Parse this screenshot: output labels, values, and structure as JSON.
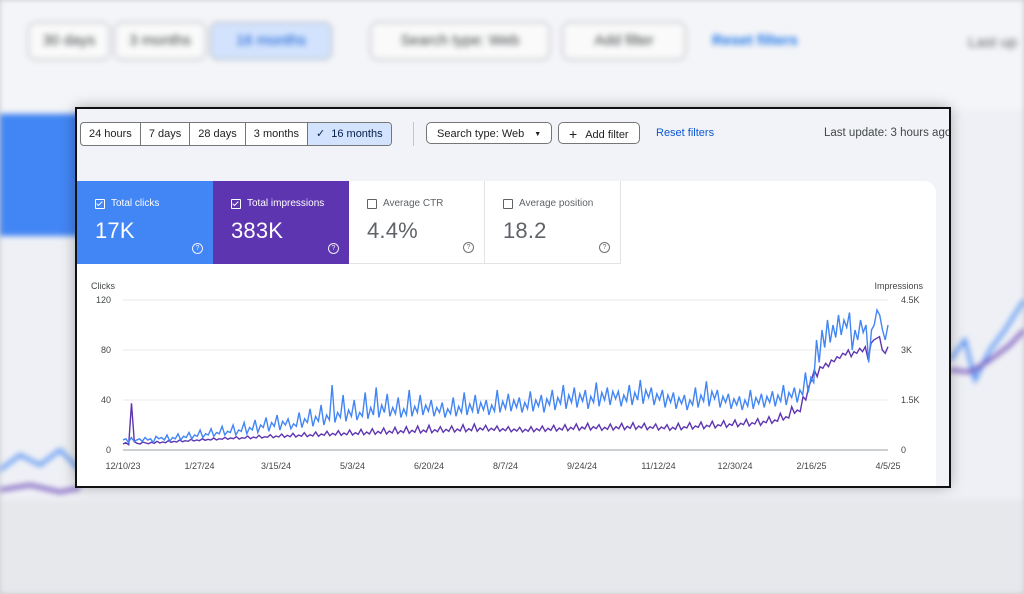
{
  "backdrop": {
    "chips": [
      "30 days",
      "3 months",
      "16 months",
      "Search type: Web",
      "Add filter"
    ],
    "reset_link": "Reset filters",
    "last_update": "Last up"
  },
  "toolbar": {
    "date_ranges": [
      {
        "label": "24 hours",
        "selected": false
      },
      {
        "label": "7 days",
        "selected": false
      },
      {
        "label": "28 days",
        "selected": false
      },
      {
        "label": "3 months",
        "selected": false
      },
      {
        "label": "16 months",
        "selected": true
      }
    ],
    "search_type": "Search type: Web",
    "add_filter": "Add filter",
    "reset_filters": "Reset filters",
    "last_update": "Last update: 3 hours ago"
  },
  "metrics": [
    {
      "key": "clicks",
      "label": "Total clicks",
      "value": "17K",
      "checked": true,
      "color": "#4285f4"
    },
    {
      "key": "impr",
      "label": "Total impressions",
      "value": "383K",
      "checked": true,
      "color": "#5e35b1"
    },
    {
      "key": "ctr",
      "label": "Average CTR",
      "value": "4.4%",
      "checked": false
    },
    {
      "key": "pos",
      "label": "Average position",
      "value": "18.2",
      "checked": false
    }
  ],
  "chart_data": {
    "type": "line",
    "x_tick_labels": [
      "12/10/23",
      "1/27/24",
      "3/15/24",
      "5/3/24",
      "6/20/24",
      "8/7/24",
      "9/24/24",
      "11/12/24",
      "12/30/24",
      "2/16/25",
      "4/5/25"
    ],
    "left_axis": {
      "label": "Clicks",
      "ticks": [
        0,
        40,
        80,
        120
      ],
      "range": [
        0,
        120
      ]
    },
    "right_axis": {
      "label": "Impressions",
      "tick_labels": [
        "0",
        "1.5K",
        "3K",
        "4.5K"
      ],
      "range": [
        0,
        4500
      ]
    },
    "grid": true,
    "series": [
      {
        "name": "Clicks",
        "axis": "left",
        "color": "#4285f4",
        "values": [
          8,
          9,
          6,
          10,
          7,
          8,
          9,
          7,
          10,
          8,
          9,
          6,
          11,
          9,
          10,
          8,
          12,
          7,
          10,
          9,
          13,
          8,
          11,
          10,
          14,
          9,
          12,
          11,
          16,
          10,
          13,
          12,
          17,
          11,
          14,
          13,
          19,
          12,
          15,
          14,
          20,
          12,
          16,
          15,
          22,
          13,
          18,
          16,
          24,
          14,
          20,
          18,
          26,
          15,
          22,
          19,
          28,
          16,
          23,
          20,
          25,
          17,
          21,
          19,
          30,
          18,
          25,
          22,
          33,
          19,
          27,
          23,
          36,
          20,
          28,
          24,
          52,
          22,
          30,
          26,
          44,
          23,
          32,
          27,
          40,
          24,
          30,
          27,
          46,
          25,
          34,
          28,
          50,
          26,
          36,
          30,
          45,
          27,
          34,
          29,
          42,
          26,
          33,
          28,
          48,
          27,
          35,
          30,
          44,
          28,
          36,
          31,
          40,
          27,
          34,
          30,
          38,
          26,
          33,
          29,
          42,
          27,
          35,
          30,
          46,
          28,
          37,
          31,
          44,
          29,
          38,
          32,
          40,
          28,
          36,
          31,
          48,
          30,
          39,
          33,
          45,
          31,
          40,
          34,
          42,
          30,
          38,
          33,
          47,
          31,
          40,
          35,
          44,
          30,
          41,
          36,
          48,
          32,
          42,
          37,
          52,
          33,
          44,
          38,
          50,
          34,
          45,
          39,
          48,
          33,
          43,
          38,
          54,
          35,
          46,
          40,
          50,
          36,
          47,
          41,
          47,
          35,
          44,
          39,
          52,
          36,
          46,
          40,
          56,
          37,
          48,
          42,
          50,
          36,
          45,
          40,
          48,
          34,
          44,
          38,
          46,
          33,
          42,
          37,
          44,
          32,
          40,
          36,
          50,
          34,
          44,
          39,
          55,
          35,
          47,
          41,
          48,
          34,
          43,
          38,
          45,
          33,
          41,
          36,
          43,
          32,
          40,
          35,
          48,
          33,
          42,
          37,
          45,
          34,
          43,
          38,
          47,
          35,
          44,
          39,
          52,
          36,
          46,
          42,
          50,
          38,
          48,
          44,
          62,
          46,
          58,
          54,
          88,
          70,
          96,
          82,
          104,
          86,
          100,
          90,
          108,
          92,
          104,
          98,
          110,
          80,
          96,
          88,
          104,
          94,
          100,
          70,
          96,
          100,
          112,
          108,
          96,
          88,
          100
        ]
      },
      {
        "name": "Impressions",
        "axis": "right",
        "color": "#5e35b1",
        "values": [
          180,
          220,
          160,
          1400,
          250,
          200,
          180,
          240,
          210,
          190,
          230,
          200,
          260,
          210,
          240,
          220,
          280,
          230,
          260,
          240,
          300,
          250,
          280,
          260,
          320,
          270,
          300,
          280,
          340,
          290,
          320,
          300,
          360,
          300,
          340,
          320,
          380,
          320,
          360,
          340,
          400,
          330,
          370,
          350,
          420,
          340,
          390,
          360,
          440,
          360,
          400,
          380,
          460,
          370,
          420,
          390,
          480,
          380,
          440,
          400,
          500,
          390,
          450,
          410,
          520,
          400,
          460,
          420,
          540,
          410,
          480,
          440,
          560,
          430,
          500,
          450,
          580,
          440,
          510,
          460,
          600,
          450,
          520,
          470,
          620,
          460,
          540,
          480,
          640,
          470,
          560,
          500,
          660,
          480,
          570,
          510,
          680,
          490,
          580,
          520,
          700,
          500,
          590,
          530,
          720,
          510,
          600,
          540,
          740,
          520,
          610,
          550,
          700,
          530,
          620,
          560,
          720,
          540,
          630,
          570,
          760,
          550,
          640,
          580,
          780,
          560,
          660,
          600,
          740,
          570,
          650,
          590,
          720,
          560,
          640,
          580,
          700,
          550,
          630,
          570,
          680,
          540,
          620,
          560,
          700,
          550,
          640,
          580,
          720,
          560,
          650,
          590,
          740,
          570,
          660,
          600,
          760,
          580,
          680,
          620,
          780,
          590,
          690,
          630,
          800,
          600,
          700,
          640,
          760,
          590,
          680,
          620,
          780,
          600,
          700,
          640,
          800,
          610,
          710,
          650,
          820,
          620,
          720,
          660,
          800,
          610,
          700,
          650,
          780,
          600,
          690,
          640,
          760,
          590,
          680,
          620,
          800,
          610,
          700,
          660,
          820,
          630,
          720,
          680,
          840,
          640,
          740,
          700,
          860,
          660,
          760,
          720,
          880,
          680,
          780,
          740,
          900,
          700,
          800,
          760,
          920,
          720,
          820,
          780,
          940,
          740,
          860,
          820,
          1000,
          800,
          900,
          860,
          1100,
          900,
          1000,
          960,
          1300,
          1100,
          1200,
          1150,
          1600,
          1500,
          1900,
          2100,
          2400,
          2200,
          2500,
          2450,
          2600,
          2500,
          2700,
          2650,
          2800,
          2750,
          2900,
          2850,
          3000,
          2800,
          2950,
          2900,
          3050,
          2950,
          3100,
          2700,
          3200,
          3300,
          3350,
          3400,
          3000,
          2900,
          3100
        ]
      }
    ]
  }
}
